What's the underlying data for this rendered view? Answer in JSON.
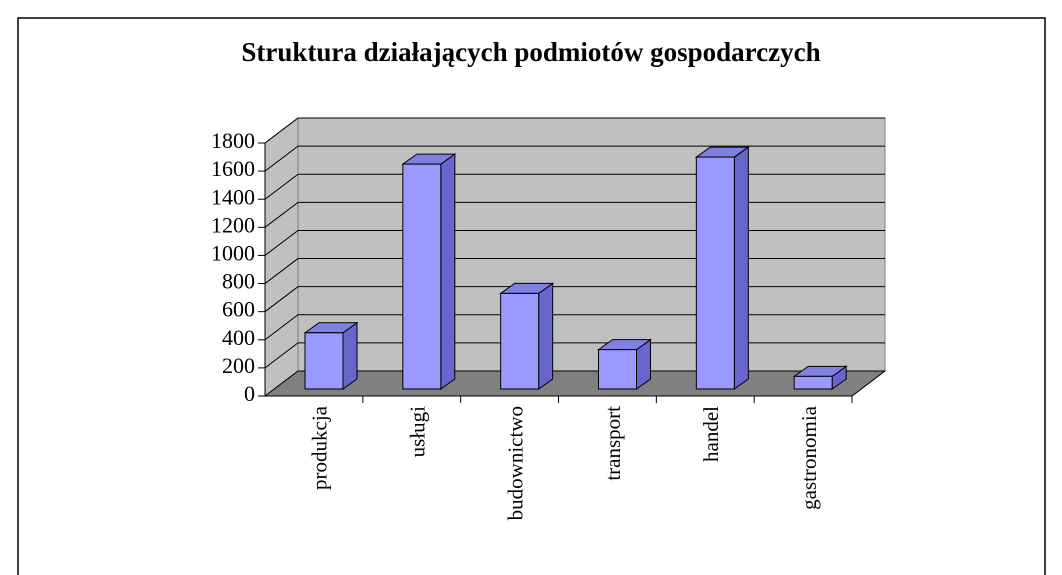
{
  "chart_data": {
    "type": "bar3d",
    "title": "Struktura działających podmiotów gospodarczych",
    "categories": [
      "produkcja",
      "usługi",
      "budownictwo",
      "transport",
      "handel",
      "gastronomia"
    ],
    "values": [
      400,
      1600,
      680,
      280,
      1650,
      90
    ],
    "color": "#9999ff",
    "ylim": [
      0,
      1800
    ],
    "yticks": [
      0,
      200,
      400,
      600,
      800,
      1000,
      1200,
      1400,
      1600,
      1800
    ],
    "grid": true
  }
}
